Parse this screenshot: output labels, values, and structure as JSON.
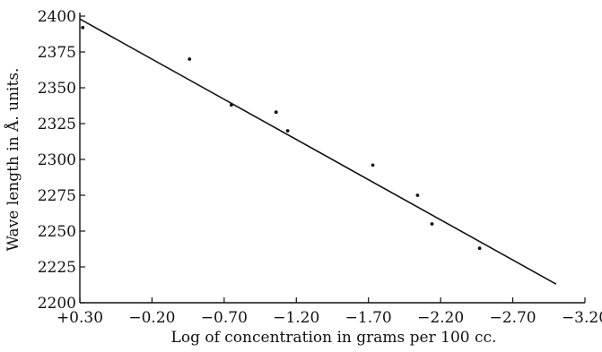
{
  "chart_data": {
    "type": "scatter",
    "title": "",
    "xlabel": "Log of concentration in grams per 100 cc.",
    "ylabel": "Wave length in Å. units.",
    "x_direction": "decreasing to the right",
    "xlim": [
      0.3,
      -3.2
    ],
    "ylim": [
      2200,
      2400
    ],
    "x_ticks": [
      0.3,
      -0.2,
      -0.7,
      -1.2,
      -1.7,
      -2.2,
      -2.7,
      -3.2
    ],
    "x_tick_labels": [
      "+0.30",
      "−0.20",
      "−0.70",
      "−1.20",
      "−1.70",
      "−2.20",
      "−2.70",
      "−3.20"
    ],
    "y_ticks": [
      2200,
      2225,
      2250,
      2275,
      2300,
      2325,
      2350,
      2375,
      2400
    ],
    "y_tick_labels": [
      "2200",
      "2225",
      "2250",
      "2275",
      "2300",
      "2325",
      "2350",
      "2375",
      "2400"
    ],
    "grid": false,
    "series": [
      {
        "points": [
          {
            "x": 0.28,
            "y": 2392
          },
          {
            "x": -0.46,
            "y": 2370
          },
          {
            "x": -0.75,
            "y": 2338
          },
          {
            "x": -1.06,
            "y": 2333
          },
          {
            "x": -1.14,
            "y": 2320
          },
          {
            "x": -1.73,
            "y": 2296
          },
          {
            "x": -2.04,
            "y": 2275
          },
          {
            "x": -2.14,
            "y": 2255
          },
          {
            "x": -2.47,
            "y": 2238
          }
        ]
      }
    ],
    "fit_line": {
      "x": [
        0.3,
        -3.0
      ],
      "y": [
        2398,
        2213
      ]
    }
  }
}
